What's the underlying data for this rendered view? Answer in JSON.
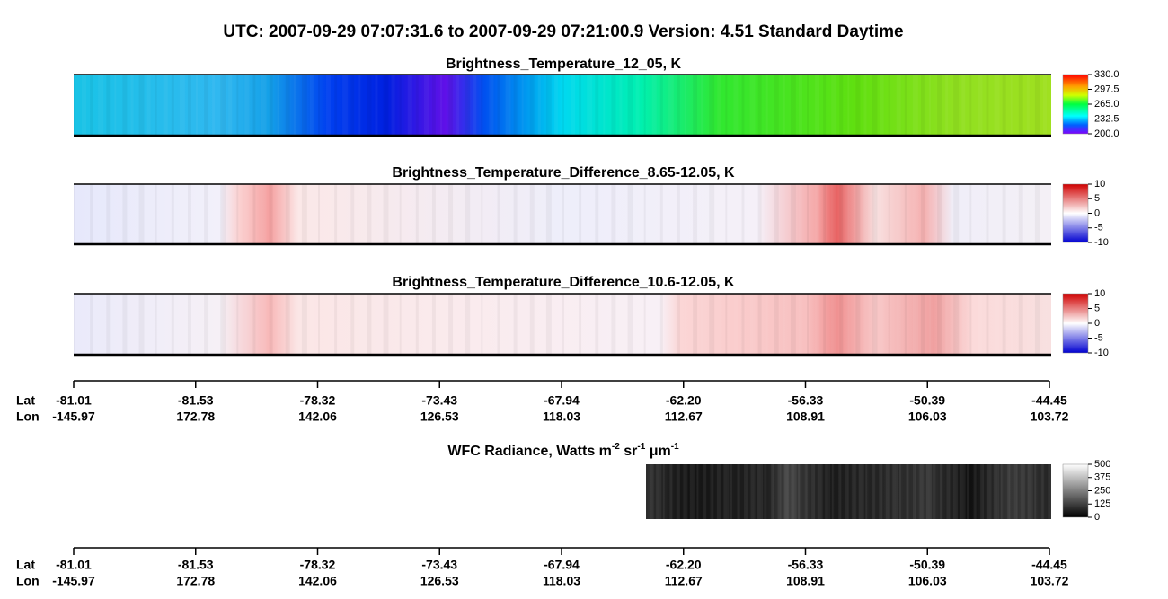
{
  "title": "UTC:  2007-09-29   07:07:31.6  to  2007-09-29   07:21:00.9    Version: 4.51  Standard Daytime",
  "panels": [
    {
      "title": "Brightness_Temperature_12_05, K",
      "colorbar_ticks": [
        {
          "value": 330,
          "label": "330.0"
        },
        {
          "value": 297.5,
          "label": "297.5"
        },
        {
          "value": 265,
          "label": "265.0"
        },
        {
          "value": 232.5,
          "label": "232.5"
        },
        {
          "value": 200,
          "label": "200.0"
        }
      ]
    },
    {
      "title": "Brightness_Temperature_Difference_8.65-12.05, K",
      "colorbar_ticks": [
        10,
        5,
        0,
        -5,
        -10
      ]
    },
    {
      "title": "Brightness_Temperature_Difference_10.6-12.05, K",
      "colorbar_ticks": [
        10,
        5,
        0,
        -5,
        -10
      ]
    },
    {
      "title_parts": [
        "WFC Radiance, Watts m",
        "-2",
        " sr",
        "-1",
        " μm",
        "-1"
      ],
      "colorbar_ticks": [
        500,
        375,
        250,
        125,
        0
      ]
    }
  ],
  "axis": {
    "lat_label": "Lat",
    "lon_label": "Lon",
    "lat": [
      "-81.01",
      "-81.53",
      "-78.32",
      "-73.43",
      "-67.94",
      "-62.20",
      "-56.33",
      "-50.39",
      "-44.45"
    ],
    "lon": [
      "-145.97",
      "172.78",
      "142.06",
      "126.53",
      "118.03",
      "112.67",
      "108.91",
      "106.03",
      "103.72"
    ]
  }
}
